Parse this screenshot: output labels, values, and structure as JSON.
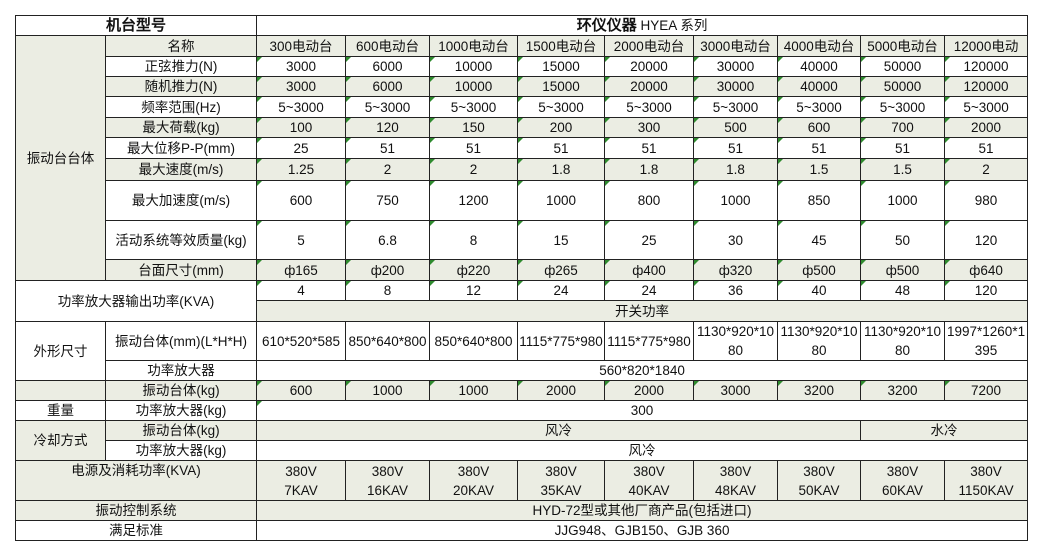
{
  "header": {
    "model_label": "机台型号",
    "brand_bold": "环仪仪器",
    "brand_series": "HYEA 系列"
  },
  "columns_label": "名称",
  "models": [
    "300电动台",
    "600电动台",
    "1000电动台",
    "1500电动台",
    "2000电动台",
    "3000电动台",
    "4000电动台",
    "5000电动台",
    "12000电动"
  ],
  "body_group": "振动台台体",
  "body_rows": [
    {
      "label": "正弦推力(N)",
      "values": [
        "3000",
        "6000",
        "10000",
        "15000",
        "20000",
        "30000",
        "40000",
        "50000",
        "120000"
      ]
    },
    {
      "label": "随机推力(N)",
      "values": [
        "3000",
        "6000",
        "10000",
        "15000",
        "20000",
        "30000",
        "40000",
        "50000",
        "120000"
      ]
    },
    {
      "label": "频率范围(Hz)",
      "values": [
        "5~3000",
        "5~3000",
        "5~3000",
        "5~3000",
        "5~3000",
        "5~3000",
        "5~3000",
        "5~3000",
        "5~3000"
      ]
    },
    {
      "label": "最大荷载(kg)",
      "values": [
        "100",
        "120",
        "150",
        "200",
        "300",
        "500",
        "600",
        "700",
        "2000"
      ]
    },
    {
      "label": "最大位移P-P(mm)",
      "values": [
        "25",
        "51",
        "51",
        "51",
        "51",
        "51",
        "51",
        "51",
        "51"
      ]
    },
    {
      "label": "最大速度(m/s)",
      "values": [
        "1.25",
        "2",
        "2",
        "1.8",
        "1.8",
        "1.8",
        "1.5",
        "1.5",
        "2"
      ]
    },
    {
      "label": "最大加速度(m/s)",
      "values": [
        "600",
        "750",
        "1200",
        "1000",
        "800",
        "1000",
        "850",
        "1000",
        "980"
      ]
    },
    {
      "label": "活动系统等效质量(kg)",
      "values": [
        "5",
        "6.8",
        "8",
        "15",
        "25",
        "30",
        "45",
        "50",
        "120"
      ]
    },
    {
      "label": "台面尺寸(mm)",
      "values": [
        "ф165",
        "ф200",
        "ф220",
        "ф265",
        "ф400",
        "ф320",
        "ф500",
        "ф500",
        "ф640"
      ]
    }
  ],
  "amp": {
    "label": "功率放大器输出功率(KVA)",
    "values": [
      "4",
      "8",
      "12",
      "24",
      "24",
      "36",
      "40",
      "48",
      "120"
    ],
    "type": "开关功率"
  },
  "dims": {
    "label": "外形尺寸",
    "body_label": "振动台体(mm)(L*H*H)",
    "body_values": [
      "610*520*585",
      "850*640*800",
      "850*640*800",
      "1115*775*980",
      "1115*775*980",
      "1130*920*1080",
      "1130*920*1080",
      "1130*920*1080",
      "1997*1260*1395"
    ],
    "amp_label": "功率放大器",
    "amp_value": "560*820*1840"
  },
  "weight": {
    "label": "重量",
    "body_label": "振动台体(kg)",
    "body_values": [
      "600",
      "1000",
      "1000",
      "2000",
      "2000",
      "3000",
      "3200",
      "3200",
      "7200"
    ],
    "amp_label": "功率放大器(kg)",
    "amp_value": "300"
  },
  "cooling": {
    "label": "冷却方式",
    "body_label": "振动台体(kg)",
    "body_air": "风冷",
    "body_water": "水冷",
    "amp_label": "功率放大器(kg)",
    "amp_value": "风冷"
  },
  "power": {
    "label": "电源及消耗功率(KVA)",
    "voltage": "380V",
    "values": [
      "7KAV",
      "16KAV",
      "20KAV",
      "35KAV",
      "40KAV",
      "48KAV",
      "50KAV",
      "60KAV",
      "1150KAV"
    ]
  },
  "control": {
    "label": "振动控制系统",
    "value": "HYD-72型或其他厂商产品(包括进口)"
  },
  "standard": {
    "label": "满足标准",
    "value": "JJG948、GJB150、GJB 360"
  }
}
